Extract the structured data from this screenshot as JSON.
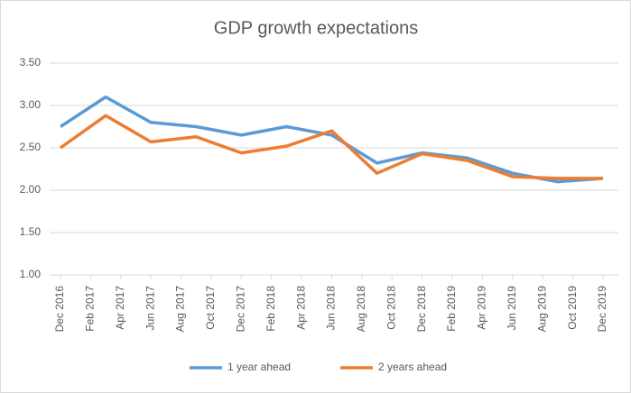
{
  "chart_data": {
    "type": "line",
    "title": "GDP growth expectations",
    "x": [
      "2016-12",
      "2017-03",
      "2017-06",
      "2017-09",
      "2017-12",
      "2018-03",
      "2018-06",
      "2018-09",
      "2018-12",
      "2019-03",
      "2019-06",
      "2019-09",
      "2019-12"
    ],
    "series": [
      {
        "name": "1 year ahead",
        "color": "#5b9bd5",
        "values": [
          2.75,
          3.1,
          2.8,
          2.75,
          2.65,
          2.75,
          2.65,
          2.32,
          2.44,
          2.38,
          2.2,
          2.1,
          2.14
        ]
      },
      {
        "name": "2 years ahead",
        "color": "#ed7d31",
        "values": [
          2.5,
          2.88,
          2.57,
          2.63,
          2.44,
          2.52,
          2.7,
          2.2,
          2.43,
          2.35,
          2.16,
          2.14,
          2.14
        ]
      }
    ],
    "xlim": [
      "2016-12",
      "2019-12"
    ],
    "xticks": [
      {
        "value": "2016-12",
        "label": "Dec 2016"
      },
      {
        "value": "2017-02",
        "label": "Feb 2017"
      },
      {
        "value": "2017-04",
        "label": "Apr 2017"
      },
      {
        "value": "2017-06",
        "label": "Jun 2017"
      },
      {
        "value": "2017-08",
        "label": "Aug 2017"
      },
      {
        "value": "2017-10",
        "label": "Oct 2017"
      },
      {
        "value": "2017-12",
        "label": "Dec 2017"
      },
      {
        "value": "2018-02",
        "label": "Feb 2018"
      },
      {
        "value": "2018-04",
        "label": "Apr 2018"
      },
      {
        "value": "2018-06",
        "label": "Jun 2018"
      },
      {
        "value": "2018-08",
        "label": "Aug 2018"
      },
      {
        "value": "2018-10",
        "label": "Oct 2018"
      },
      {
        "value": "2018-12",
        "label": "Dec 2018"
      },
      {
        "value": "2019-02",
        "label": "Feb 2019"
      },
      {
        "value": "2019-04",
        "label": "Apr 2019"
      },
      {
        "value": "2019-06",
        "label": "Jun 2019"
      },
      {
        "value": "2019-08",
        "label": "Aug 2019"
      },
      {
        "value": "2019-10",
        "label": "Oct 2019"
      },
      {
        "value": "2019-12",
        "label": "Dec 2019"
      }
    ],
    "ylim": [
      1.0,
      3.5
    ],
    "yticks": [
      {
        "value": 1.0,
        "label": "1.00"
      },
      {
        "value": 1.5,
        "label": "1.50"
      },
      {
        "value": 2.0,
        "label": "2.00"
      },
      {
        "value": 2.5,
        "label": "2.50"
      },
      {
        "value": 3.0,
        "label": "3.00"
      },
      {
        "value": 3.5,
        "label": "3.50"
      }
    ],
    "grid": true,
    "legend": "bottom"
  }
}
